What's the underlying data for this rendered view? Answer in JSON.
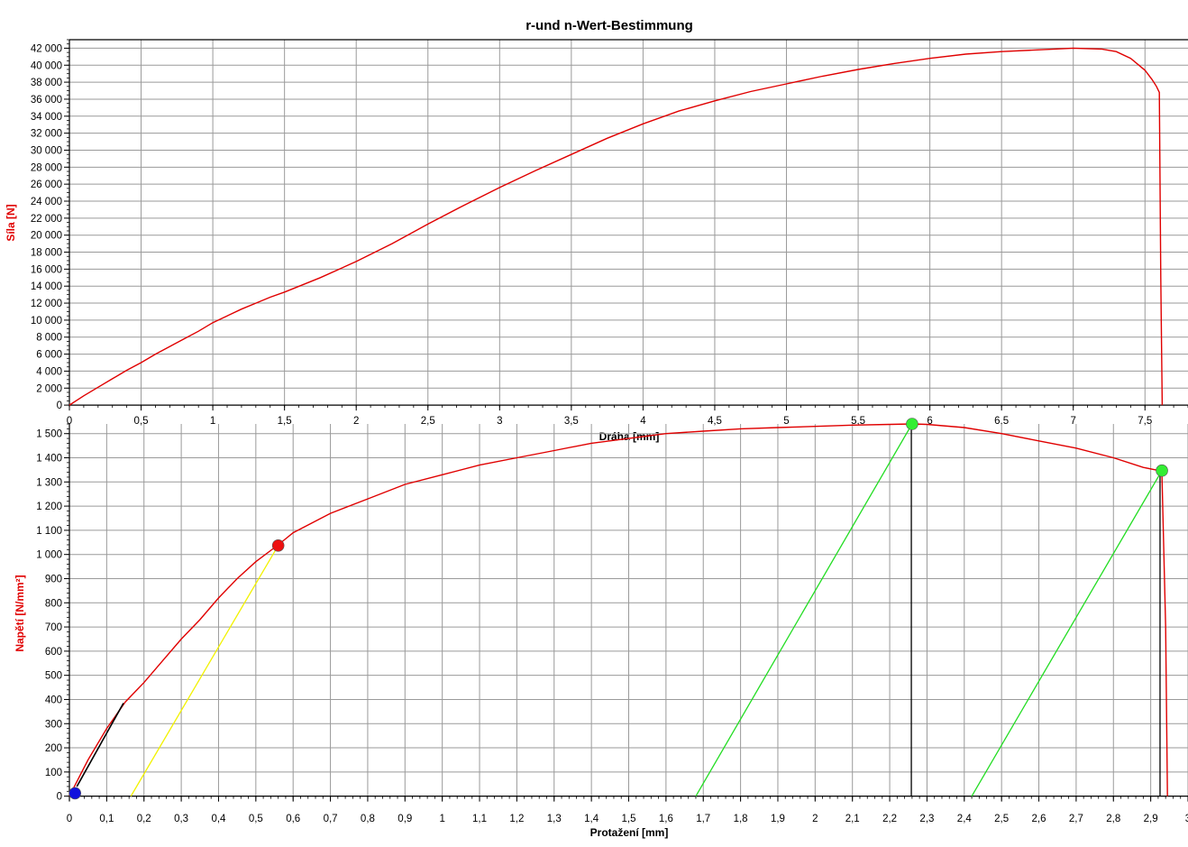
{
  "title": "r-und n-Wert-Bestimmung",
  "colors": {
    "curve": "#e00000",
    "grid": "#9a9a9a",
    "axis_label_y": "#e00000",
    "axis_label_x": "#000000",
    "yellow_line": "#f2f200",
    "green_line": "#22dd22",
    "black_line": "#000000",
    "marker_red": "#ee1111",
    "marker_green": "#33ee33",
    "marker_blue": "#1111dd"
  },
  "chart_data": [
    {
      "type": "line",
      "name": "force-displacement",
      "xlabel": "Dráha [mm]",
      "ylabel": "Síla [N]",
      "xlim": [
        0,
        7.8
      ],
      "ylim": [
        -200,
        43000
      ],
      "x_ticks": [
        "0",
        "0,5",
        "1",
        "1,5",
        "2",
        "2,5",
        "3",
        "3,5",
        "4",
        "4,5",
        "5",
        "5,5",
        "6",
        "6,5",
        "7",
        "7,5"
      ],
      "x_tick_values": [
        0,
        0.5,
        1,
        1.5,
        2,
        2.5,
        3,
        3.5,
        4,
        4.5,
        5,
        5.5,
        6,
        6.5,
        7,
        7.5
      ],
      "y_ticks": [
        "0",
        "2 000",
        "4 000",
        "6 000",
        "8 000",
        "10 000",
        "12 000",
        "14 000",
        "16 000",
        "18 000",
        "20 000",
        "22 000",
        "24 000",
        "26 000",
        "28 000",
        "30 000",
        "32 000",
        "34 000",
        "36 000",
        "38 000",
        "40 000",
        "42 000"
      ],
      "y_tick_values": [
        0,
        2000,
        4000,
        6000,
        8000,
        10000,
        12000,
        14000,
        16000,
        18000,
        20000,
        22000,
        24000,
        26000,
        28000,
        30000,
        32000,
        34000,
        36000,
        38000,
        40000,
        42000
      ],
      "grid": true,
      "series": [
        {
          "x": [
            0,
            0.1,
            0.2,
            0.3,
            0.4,
            0.5,
            0.6,
            0.7,
            0.8,
            0.9,
            1.0,
            1.1,
            1.2,
            1.3,
            1.4,
            1.5,
            1.75,
            2.0,
            2.25,
            2.5,
            2.75,
            3.0,
            3.25,
            3.5,
            3.75,
            4.0,
            4.25,
            4.5,
            4.75,
            5.0,
            5.25,
            5.5,
            5.75,
            6.0,
            6.25,
            6.5,
            6.75,
            7.0,
            7.2,
            7.3,
            7.4,
            7.5,
            7.55,
            7.58,
            7.6,
            7.61,
            7.62
          ],
          "y": [
            0,
            1100,
            2100,
            3100,
            4100,
            5000,
            6000,
            6900,
            7800,
            8700,
            9700,
            10500,
            11300,
            12000,
            12700,
            13300,
            15000,
            16900,
            19000,
            21300,
            23500,
            25600,
            27600,
            29500,
            31400,
            33100,
            34600,
            35800,
            36900,
            37800,
            38700,
            39500,
            40200,
            40800,
            41300,
            41600,
            41800,
            42000,
            41900,
            41600,
            40800,
            39400,
            38300,
            37500,
            36800,
            15000,
            0
          ]
        }
      ]
    },
    {
      "type": "line",
      "name": "stress-elongation",
      "xlabel": "Protažení [mm]",
      "ylabel": "Napětí [N/mm²]",
      "xlim": [
        0,
        3.0
      ],
      "ylim": [
        -20,
        1540
      ],
      "x_ticks": [
        "0",
        "0,1",
        "0,2",
        "0,3",
        "0,4",
        "0,5",
        "0,6",
        "0,7",
        "0,8",
        "0,9",
        "1",
        "1,1",
        "1,2",
        "1,3",
        "1,4",
        "1,5",
        "1,6",
        "1,7",
        "1,8",
        "1,9",
        "2",
        "2,1",
        "2,2",
        "2,3",
        "2,4",
        "2,5",
        "2,6",
        "2,7",
        "2,8",
        "2,9",
        "3"
      ],
      "x_tick_values": [
        0,
        0.1,
        0.2,
        0.3,
        0.4,
        0.5,
        0.6,
        0.7,
        0.8,
        0.9,
        1,
        1.1,
        1.2,
        1.3,
        1.4,
        1.5,
        1.6,
        1.7,
        1.8,
        1.9,
        2,
        2.1,
        2.2,
        2.3,
        2.4,
        2.5,
        2.6,
        2.7,
        2.8,
        2.9,
        3
      ],
      "y_ticks": [
        "0",
        "100",
        "200",
        "300",
        "400",
        "500",
        "600",
        "700",
        "800",
        "900",
        "1 000",
        "1 100",
        "1 200",
        "1 300",
        "1 400",
        "1 500"
      ],
      "y_tick_values": [
        0,
        100,
        200,
        300,
        400,
        500,
        600,
        700,
        800,
        900,
        1000,
        1100,
        1200,
        1300,
        1400,
        1500
      ],
      "grid": true,
      "series": [
        {
          "x": [
            0,
            0.05,
            0.1,
            0.15,
            0.2,
            0.25,
            0.3,
            0.35,
            0.4,
            0.45,
            0.5,
            0.56,
            0.6,
            0.7,
            0.8,
            0.9,
            1.0,
            1.1,
            1.2,
            1.3,
            1.4,
            1.5,
            1.6,
            1.7,
            1.8,
            1.9,
            2.0,
            2.1,
            2.2,
            2.26,
            2.3,
            2.4,
            2.5,
            2.6,
            2.7,
            2.8,
            2.88,
            2.93,
            2.94,
            2.945
          ],
          "y": [
            0,
            150,
            280,
            390,
            470,
            560,
            650,
            730,
            820,
            900,
            970,
            1040,
            1090,
            1170,
            1230,
            1290,
            1330,
            1370,
            1400,
            1430,
            1460,
            1480,
            1500,
            1510,
            1520,
            1525,
            1530,
            1535,
            1538,
            1540,
            1538,
            1525,
            1500,
            1470,
            1440,
            1400,
            1360,
            1345,
            700,
            0
          ]
        }
      ],
      "annotations": {
        "black_segment": {
          "x": [
            0.02,
            0.145
          ],
          "y": [
            40,
            385
          ]
        },
        "yellow_line": {
          "x": [
            0.165,
            0.56
          ],
          "y": [
            0,
            1037
          ]
        },
        "green_lines": [
          {
            "x": [
              1.68,
              2.26
            ],
            "y": [
              0,
              1540
            ]
          },
          {
            "x": [
              2.42,
              2.93
            ],
            "y": [
              0,
              1347
            ]
          }
        ],
        "black_verticals": [
          {
            "x": 2.258,
            "y": [
              0,
              1540
            ]
          },
          {
            "x": 2.925,
            "y": [
              0,
              1347
            ]
          }
        ],
        "markers": [
          {
            "color": "blue",
            "x": 0.015,
            "y": 12
          },
          {
            "color": "red",
            "x": 0.56,
            "y": 1037
          },
          {
            "color": "green",
            "x": 2.26,
            "y": 1540
          },
          {
            "color": "green",
            "x": 2.93,
            "y": 1347
          }
        ]
      }
    }
  ]
}
